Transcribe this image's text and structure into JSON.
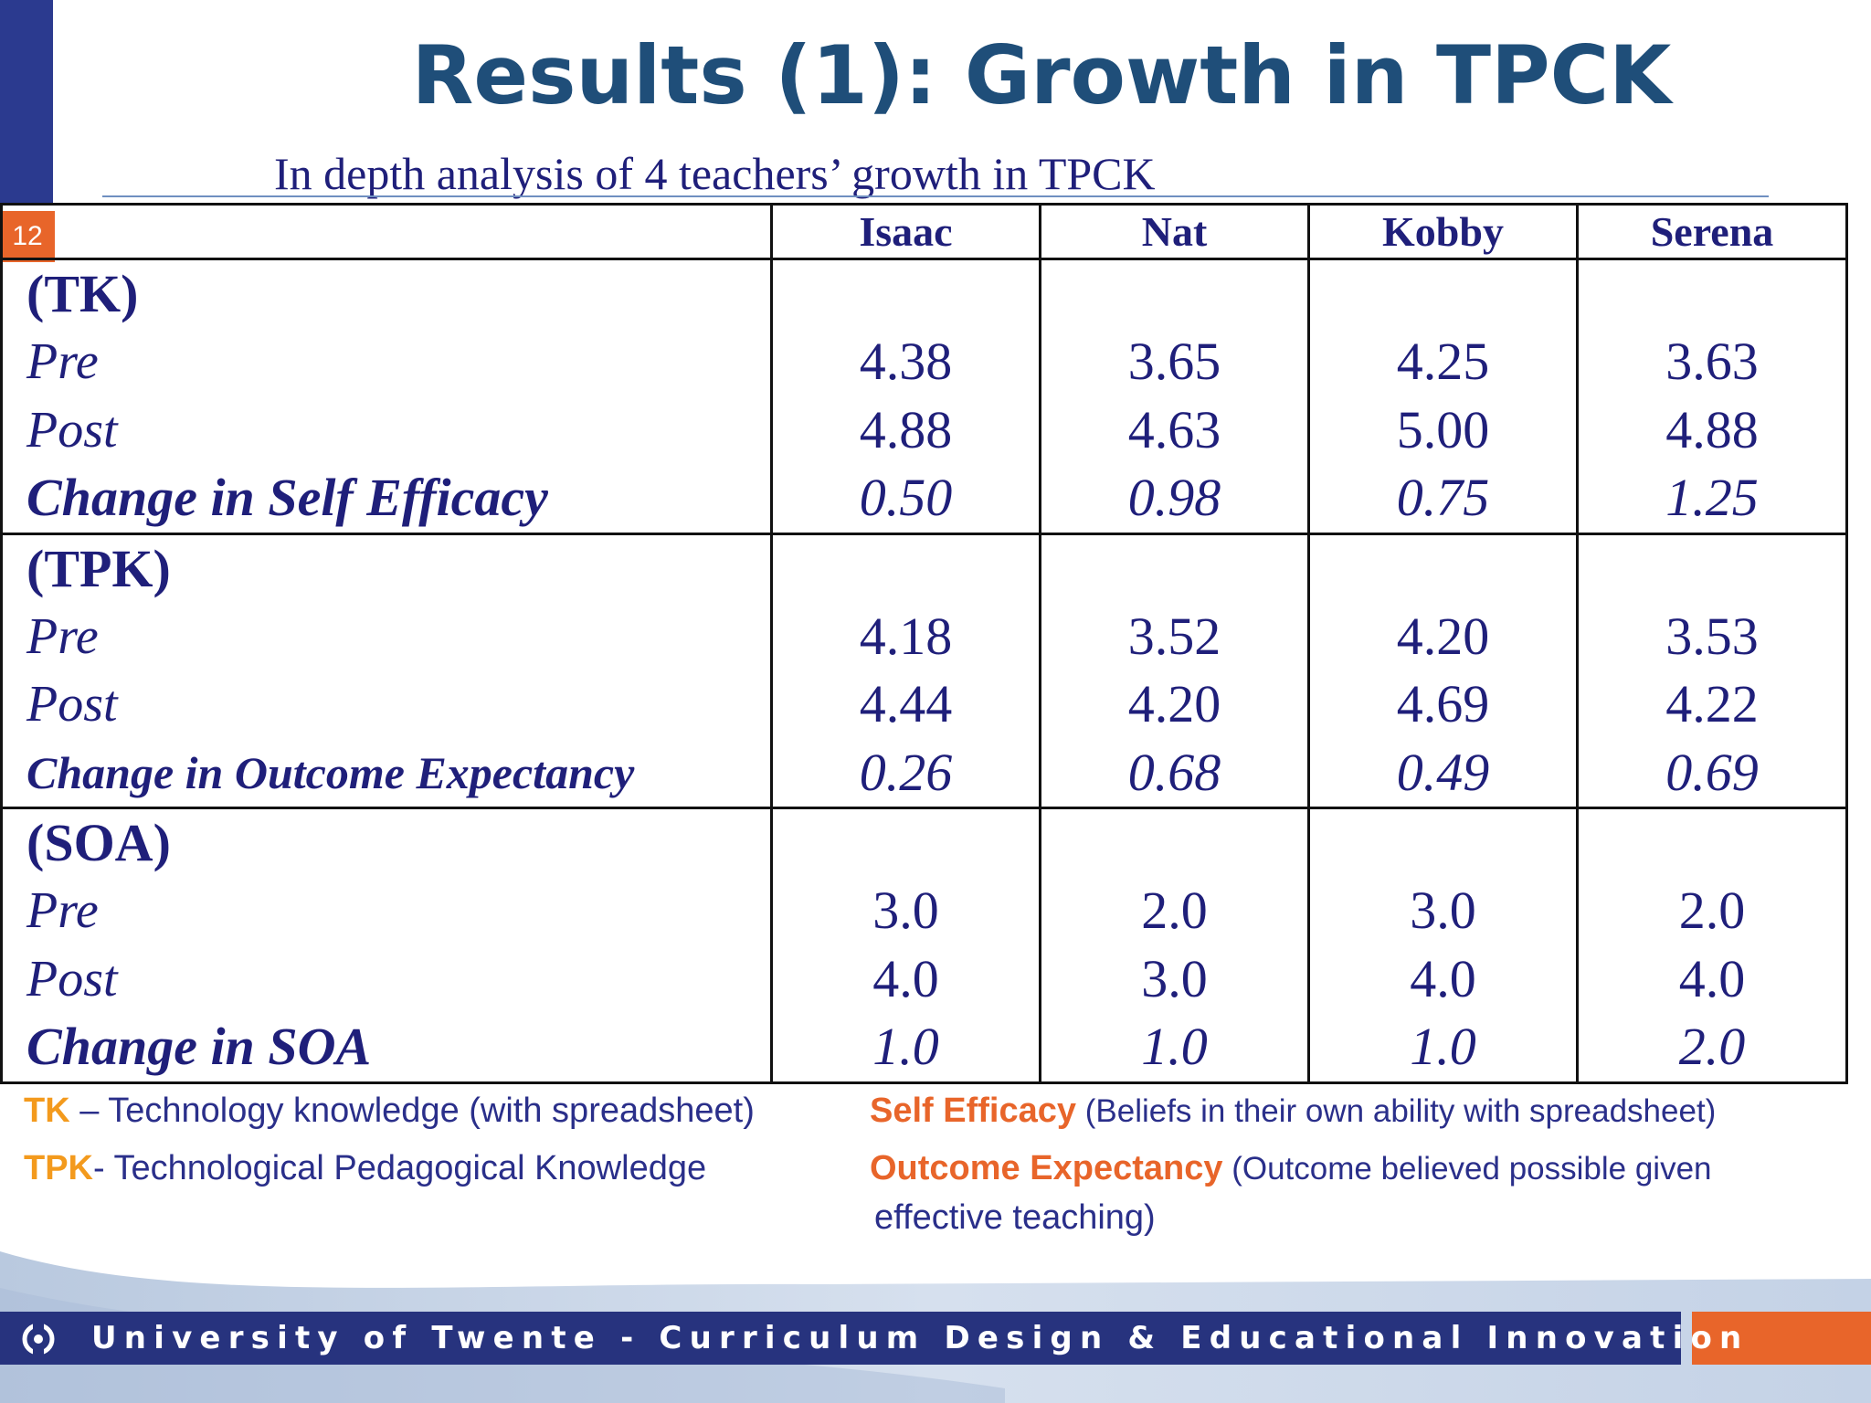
{
  "slide": {
    "number": "12",
    "title": "Results (1): Growth in TPCK",
    "subtitle": "In depth analysis of 4 teachers’ growth in TPCK"
  },
  "table": {
    "columns": [
      "Isaac",
      "Nat",
      "Kobby",
      "Serena"
    ],
    "groups": [
      {
        "heading": "(TK)",
        "rows": [
          {
            "label": "Pre",
            "values": [
              "4.38",
              "3.65",
              "4.25",
              "3.63"
            ]
          },
          {
            "label": "Post",
            "values": [
              "4.88",
              "4.63",
              "5.00",
              "4.88"
            ]
          },
          {
            "label": "Change in Self Efficacy",
            "values": [
              "0.50",
              "0.98",
              "0.75",
              "1.25"
            ]
          }
        ]
      },
      {
        "heading": "(TPK)",
        "rows": [
          {
            "label": "Pre",
            "values": [
              "4.18",
              "3.52",
              "4.20",
              "3.53"
            ]
          },
          {
            "label": "Post",
            "values": [
              "4.44",
              "4.20",
              "4.69",
              "4.22"
            ]
          },
          {
            "label": "Change in Outcome Expectancy",
            "values": [
              "0.26",
              "0.68",
              "0.49",
              "0.69"
            ]
          }
        ]
      },
      {
        "heading": "(SOA)",
        "rows": [
          {
            "label": "Pre",
            "values": [
              "3.0",
              "2.0",
              "3.0",
              "2.0"
            ]
          },
          {
            "label": "Post",
            "values": [
              "4.0",
              "3.0",
              "4.0",
              "4.0"
            ]
          },
          {
            "label": "Change in SOA",
            "values": [
              "1.0",
              "1.0",
              "1.0",
              "2.0"
            ]
          }
        ]
      }
    ]
  },
  "legend": {
    "tk_key": "TK",
    "tk_text": " – Technology knowledge (with spreadsheet)",
    "tpk_key": "TPK",
    "tpk_text": "- Technological Pedagogical Knowledge",
    "se_key": "Self Efficacy",
    "se_text": " (Beliefs in their own ability with spreadsheet)",
    "oe_key": "Outcome Expectancy",
    "oe_text": " (Outcome believed possible given",
    "oe_text2": "effective teaching)"
  },
  "footer": {
    "text": "University of Twente - Curriculum Design & Educational Innovation"
  },
  "colors": {
    "title": "#1f4e79",
    "body_text": "#1f1f7a",
    "accent_orange": "#e8652a",
    "legend_key": "#f39a1d",
    "footer_bar": "#27337e"
  }
}
